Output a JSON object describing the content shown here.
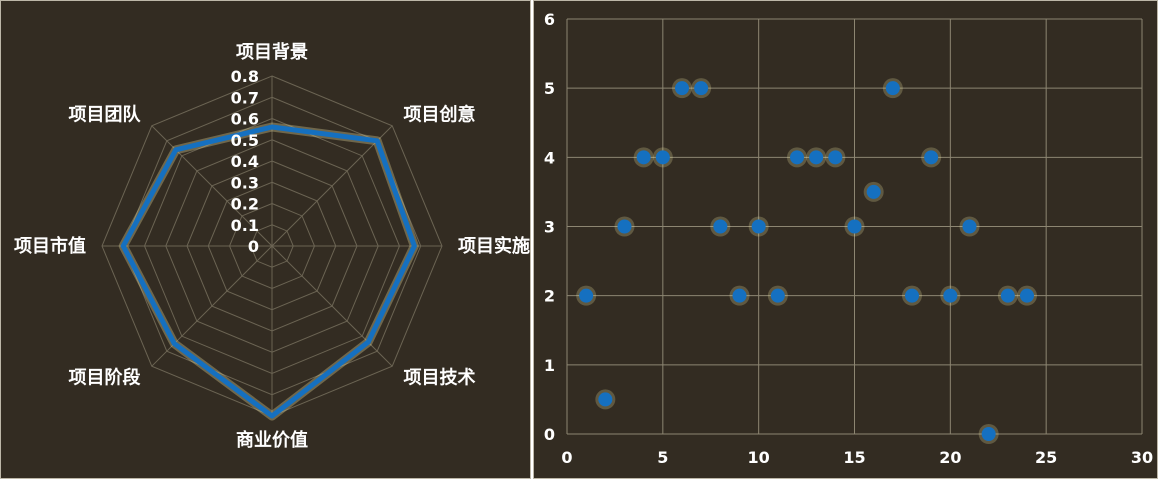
{
  "chart_data": [
    {
      "type": "radar",
      "indicators": [
        "项目背景",
        "项目创意",
        "项目实施",
        "项目技术",
        "商业价值",
        "项目阶段",
        "项目市值",
        "项目团队"
      ],
      "values": [
        0.56,
        0.7,
        0.67,
        0.64,
        0.8,
        0.65,
        0.7,
        0.64
      ],
      "rlim": [
        0,
        0.8
      ],
      "ticks": [
        "0",
        "0.1",
        "0.2",
        "0.3",
        "0.4",
        "0.5",
        "0.6",
        "0.7",
        "0.8"
      ],
      "series_color": "#1570c0",
      "grid": true
    },
    {
      "type": "scatter",
      "x": [
        1,
        2,
        3,
        4,
        5,
        6,
        7,
        8,
        9,
        10,
        11,
        12,
        13,
        14,
        15,
        16,
        17,
        18,
        19,
        20,
        21,
        22,
        23,
        24
      ],
      "y": [
        2,
        0.5,
        3,
        4,
        4,
        5,
        5,
        3,
        2,
        3,
        2,
        4,
        4,
        4,
        3,
        3.5,
        5,
        2,
        4,
        2,
        3,
        0,
        2,
        2
      ],
      "xlim": [
        0,
        30
      ],
      "ylim": [
        0,
        6
      ],
      "xticks": [
        "0",
        "5",
        "10",
        "15",
        "20",
        "25",
        "30"
      ],
      "yticks": [
        "0",
        "1",
        "2",
        "3",
        "4",
        "5",
        "6"
      ],
      "marker_color": "#1570c0",
      "grid": true
    }
  ]
}
